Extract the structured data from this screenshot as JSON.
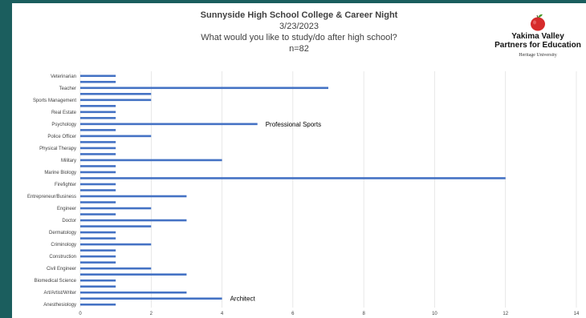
{
  "header": {
    "title": "Sunnyside High School College & Career Night",
    "date": "3/23/2023",
    "question": "What would you like to study/do after high school?",
    "n": "n=82"
  },
  "logo": {
    "line1": "Yakima Valley",
    "line2": "Partners for Education",
    "line3": "Heritage University",
    "icon": "apple-icon",
    "colors": {
      "apple": "#d62b2b",
      "leaf": "#4a9a2e"
    }
  },
  "chart_data": {
    "type": "bar",
    "orientation": "horizontal",
    "title": "Sunnyside High School College & Career Night",
    "xlim": [
      0,
      14
    ],
    "xticks": [
      0,
      2,
      4,
      6,
      8,
      10,
      12,
      14
    ],
    "grid": true,
    "bar_color": "#4472c4",
    "labeled_categories": [
      "Veterinarian",
      "Teacher",
      "Sports Management",
      "Real Estate",
      "Psychology",
      "Police Officer",
      "Physical Therapy",
      "Military",
      "Marine Biology",
      "Firefighter",
      "Entrepreneur/Business",
      "Engineer",
      "Doctor",
      "Dermatology",
      "Criminology",
      "Construction",
      "Civil Engineer",
      "Biomedical Science",
      "Art/Artist/Writer",
      "Anesthesiology"
    ],
    "values": [
      1,
      1,
      7,
      2,
      2,
      1,
      1,
      1,
      5,
      1,
      2,
      1,
      1,
      1,
      4,
      1,
      1,
      12,
      1,
      1,
      3,
      1,
      2,
      1,
      3,
      2,
      1,
      1,
      2,
      1,
      1,
      1,
      2,
      3,
      1,
      1,
      3,
      4,
      1
    ],
    "annotations": [
      {
        "text": "Professional Sports",
        "bar_index": 8
      },
      {
        "text": "Architect",
        "bar_index": 37
      }
    ]
  }
}
